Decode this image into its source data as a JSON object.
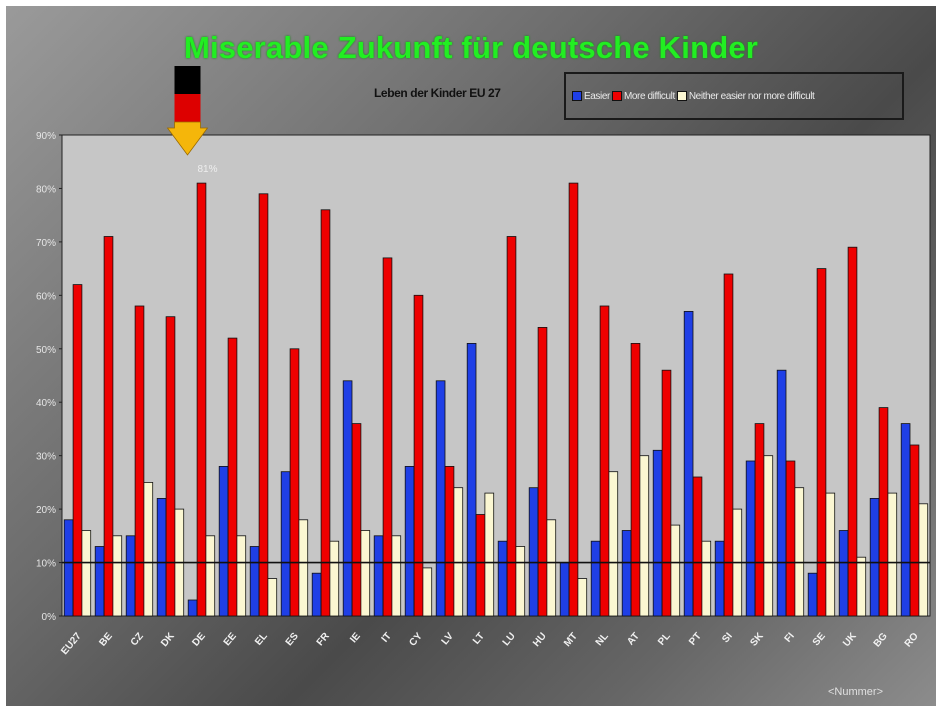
{
  "colors": {
    "easier": "#1f3fe6",
    "more_difficult": "#ee0000",
    "neither": "#fbf7d2",
    "title": "#22ee22",
    "plot_bg": "#c6c6c6",
    "flag_black": "#000000",
    "flag_red": "#dd0000",
    "flag_gold": "#ffcc00",
    "arrow": "#f5b60a"
  },
  "slide": {
    "title": "Miserable Zukunft für deutsche Kinder",
    "footer": "<Nummer>"
  },
  "chart_data": {
    "type": "bar",
    "title": "Leben der Kinder EU 27",
    "xlabel": "",
    "ylabel": "",
    "ylim": [
      0,
      90
    ],
    "yticks": [
      "0%",
      "10%",
      "20%",
      "30%",
      "40%",
      "50%",
      "60%",
      "70%",
      "80%",
      "90%"
    ],
    "grid": false,
    "legend_position": "top-right",
    "reference_line": 10,
    "categories": [
      "EU27",
      "BE",
      "CZ",
      "DK",
      "DE",
      "EE",
      "EL",
      "ES",
      "FR",
      "IE",
      "IT",
      "CY",
      "LV",
      "LT",
      "LU",
      "HU",
      "MT",
      "NL",
      "AT",
      "PL",
      "PT",
      "SI",
      "SK",
      "FI",
      "SE",
      "UK",
      "BG",
      "RO"
    ],
    "series": [
      {
        "name": "Easier",
        "color_key": "easier",
        "values": [
          18,
          13,
          15,
          22,
          3,
          28,
          13,
          27,
          8,
          44,
          15,
          28,
          44,
          51,
          14,
          24,
          10,
          14,
          16,
          31,
          57,
          14,
          29,
          46,
          8,
          16,
          22,
          36
        ]
      },
      {
        "name": "More difficult",
        "color_key": "more_difficult",
        "values": [
          62,
          71,
          58,
          56,
          81,
          52,
          79,
          50,
          76,
          36,
          67,
          60,
          28,
          19,
          71,
          54,
          81,
          58,
          51,
          46,
          26,
          64,
          36,
          29,
          65,
          69,
          39,
          32
        ]
      },
      {
        "name": "Neither easier nor more difficult",
        "color_key": "neither",
        "values": [
          16,
          15,
          25,
          20,
          15,
          15,
          7,
          18,
          14,
          16,
          15,
          9,
          24,
          23,
          13,
          18,
          7,
          27,
          30,
          17,
          14,
          20,
          30,
          24,
          23,
          11,
          23,
          21
        ]
      }
    ],
    "annotation": {
      "text": "81%",
      "category": "DE"
    }
  }
}
